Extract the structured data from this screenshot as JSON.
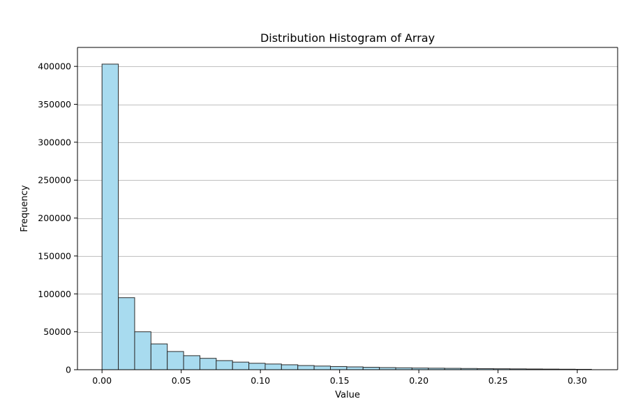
{
  "chart_data": {
    "type": "bar",
    "title": "Distribution Histogram of Array",
    "xlabel": "Value",
    "ylabel": "Frequency",
    "xlim": [
      -0.0155,
      0.3255
    ],
    "ylim": [
      0,
      425000
    ],
    "x_ticks": [
      {
        "value": 0.0,
        "label": "0.00"
      },
      {
        "value": 0.05,
        "label": "0.05"
      },
      {
        "value": 0.1,
        "label": "0.10"
      },
      {
        "value": 0.15,
        "label": "0.15"
      },
      {
        "value": 0.2,
        "label": "0.20"
      },
      {
        "value": 0.25,
        "label": "0.25"
      },
      {
        "value": 0.3,
        "label": "0.30"
      }
    ],
    "y_ticks": [
      {
        "value": 0,
        "label": "0"
      },
      {
        "value": 50000,
        "label": "50000"
      },
      {
        "value": 100000,
        "label": "100000"
      },
      {
        "value": 150000,
        "label": "150000"
      },
      {
        "value": 200000,
        "label": "200000"
      },
      {
        "value": 250000,
        "label": "250000"
      },
      {
        "value": 300000,
        "label": "300000"
      },
      {
        "value": 350000,
        "label": "350000"
      },
      {
        "value": 400000,
        "label": "400000"
      }
    ],
    "grid": "y-major",
    "bin_start": 0.0,
    "bin_width": 0.0103,
    "values": [
      403000,
      95000,
      50000,
      34000,
      24000,
      18500,
      15000,
      12000,
      10000,
      8500,
      7500,
      6500,
      5500,
      4800,
      4200,
      3700,
      3200,
      2800,
      2500,
      2200,
      2000,
      1800,
      1600,
      1400,
      1250,
      1100,
      950,
      800,
      650,
      500
    ],
    "bar_color": "#a8dbef",
    "edge_color": "#2b2b2b"
  }
}
